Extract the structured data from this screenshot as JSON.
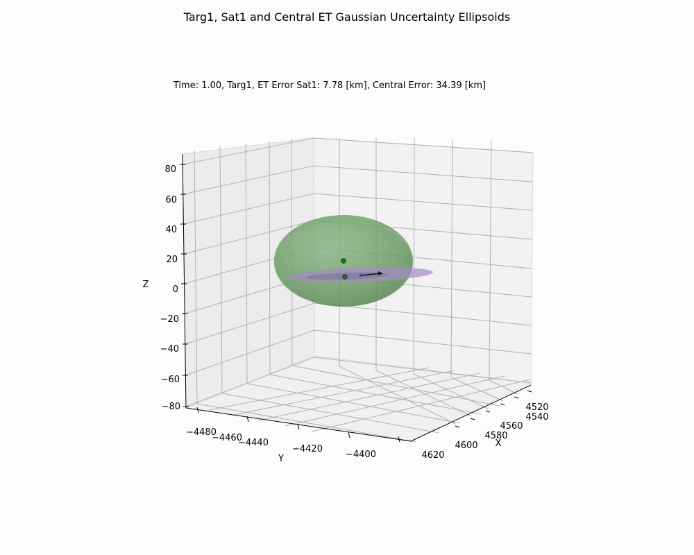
{
  "chart_data": {
    "type": "scatter",
    "title": "Targ1, Sat1 and Central ET Gaussian Uncertainty Ellipsoids",
    "subtitle": "Time: 1.00, Targ1, ET Error Sat1: 7.78 [km], Central Error: 34.39 [km]",
    "xlabel": "X",
    "ylabel": "Y",
    "zlabel": "Z",
    "x_ticks": [
      "4520",
      "4540",
      "4560",
      "4580",
      "4600",
      "4620"
    ],
    "y_ticks": [
      "−4480",
      "−4460",
      "−4440",
      "−4420",
      "−4400"
    ],
    "z_ticks": [
      "80",
      "60",
      "40",
      "20",
      "0",
      "−20",
      "−40",
      "−60",
      "−80"
    ],
    "xlim": [
      4510,
      4630
    ],
    "ylim": [
      -4490,
      -4390
    ],
    "zlim": [
      -85,
      85
    ],
    "grid": true,
    "ellipsoids": [
      {
        "color": "#6a9f63",
        "opacity": 0.8
      },
      {
        "color": "#a58cc8",
        "opacity": 0.7
      }
    ],
    "points": [
      {
        "color": "#1b6e1b"
      },
      {
        "color": "#2e5a38"
      },
      {
        "color": "#7a3fb0"
      }
    ],
    "vector_color": "#111111"
  }
}
